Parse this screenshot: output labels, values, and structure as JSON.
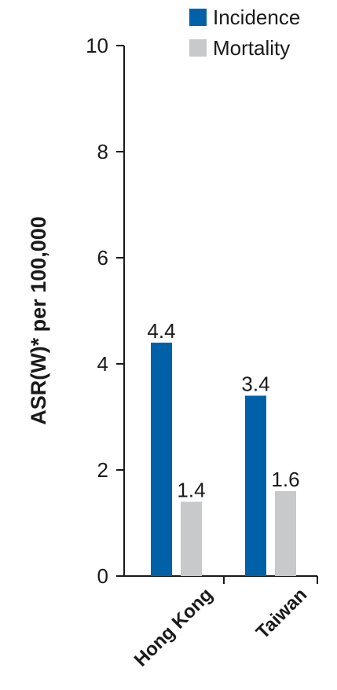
{
  "chart_data": {
    "type": "bar",
    "categories": [
      "Hong Kong",
      "Taiwan"
    ],
    "series": [
      {
        "name": "Incidence",
        "values": [
          4.4,
          3.4
        ],
        "color": "#0061a8"
      },
      {
        "name": "Mortality",
        "values": [
          1.4,
          1.6
        ],
        "color": "#c8c9cb"
      }
    ],
    "data_labels": [
      [
        "4.4",
        "3.4"
      ],
      [
        "1.4",
        "1.6"
      ]
    ],
    "title": "",
    "xlabel": "",
    "ylabel": "ASR(W)* per 100,000",
    "ylim": [
      0,
      10
    ],
    "yticks": [
      "0",
      "2",
      "4",
      "6",
      "8",
      "10"
    ],
    "legend_position": "top-right",
    "grid": false
  }
}
